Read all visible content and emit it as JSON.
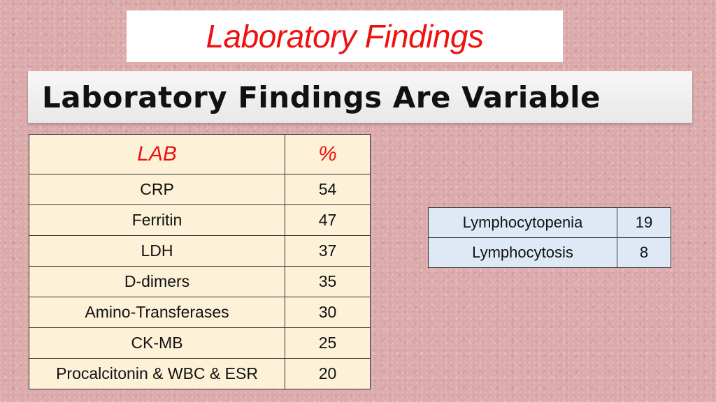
{
  "title": "Laboratory Findings",
  "subtitle": "Laboratory Findings Are Variable",
  "lab_table": {
    "header": {
      "lab": "LAB",
      "percent": "%"
    },
    "rows": [
      {
        "lab": "CRP",
        "percent": "54"
      },
      {
        "lab": "Ferritin",
        "percent": "47"
      },
      {
        "lab": "LDH",
        "percent": "37"
      },
      {
        "lab": "D-dimers",
        "percent": "35"
      },
      {
        "lab": "Amino-Transferases",
        "percent": "30"
      },
      {
        "lab": "CK-MB",
        "percent": "25"
      },
      {
        "lab": "Procalcitonin & WBC & ESR",
        "percent": "20"
      }
    ]
  },
  "lymph_table": {
    "rows": [
      {
        "name": "Lymphocytopenia",
        "value": "19"
      },
      {
        "name": "Lymphocytosis",
        "value": "8"
      }
    ]
  },
  "colors": {
    "title_red": "#ee1111",
    "background": "#dcaaab",
    "lab_table_fill": "#fdf2d8",
    "lymph_table_fill": "#dfe9f6"
  }
}
